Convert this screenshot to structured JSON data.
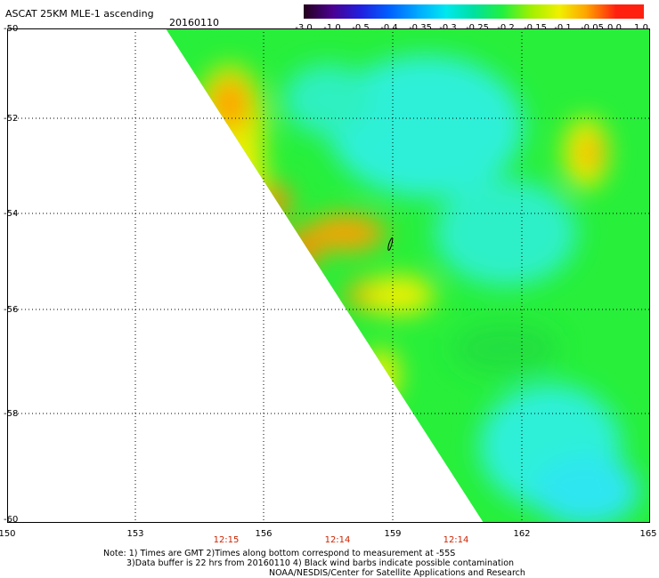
{
  "title": "ASCAT 25KM MLE-1 ascending",
  "date": "20160110",
  "colorbar": {
    "ticks": [
      "-3.0",
      "-1.0",
      "-0.5",
      "-0.4",
      "-0.35",
      "-0.3",
      "-0.25",
      "-0.2",
      "-0.15",
      "-0.1",
      "-0.05",
      "0.0",
      "1.0"
    ],
    "colors": [
      "#24001c",
      "#4a0090",
      "#2020e0",
      "#0060ff",
      "#00a8ff",
      "#00e8f0",
      "#00e0a0",
      "#20f040",
      "#a0f000",
      "#f0f000",
      "#ffa000",
      "#ff2010"
    ]
  },
  "map": {
    "lon_labels": [
      "150",
      "153",
      "156",
      "159",
      "162",
      "165"
    ],
    "lat_labels": [
      "-50",
      "-52",
      "-54",
      "-56",
      "-58",
      "-60"
    ],
    "pass_times": [
      "12:15",
      "12:14",
      "12:14"
    ],
    "lon_range": [
      150,
      165
    ],
    "lat_range": [
      -50,
      -60
    ],
    "gridlines": true
  },
  "notes": {
    "line1": "Note: 1) Times are GMT 2)Times along bottom correspond to measurement at -55S",
    "line2": "3)Data buffer is 22 hrs from 20160110 4) Black wind barbs indicate possible contamination",
    "line3": "NOAA/NESDIS/Center for Satellite Applications and Research"
  }
}
